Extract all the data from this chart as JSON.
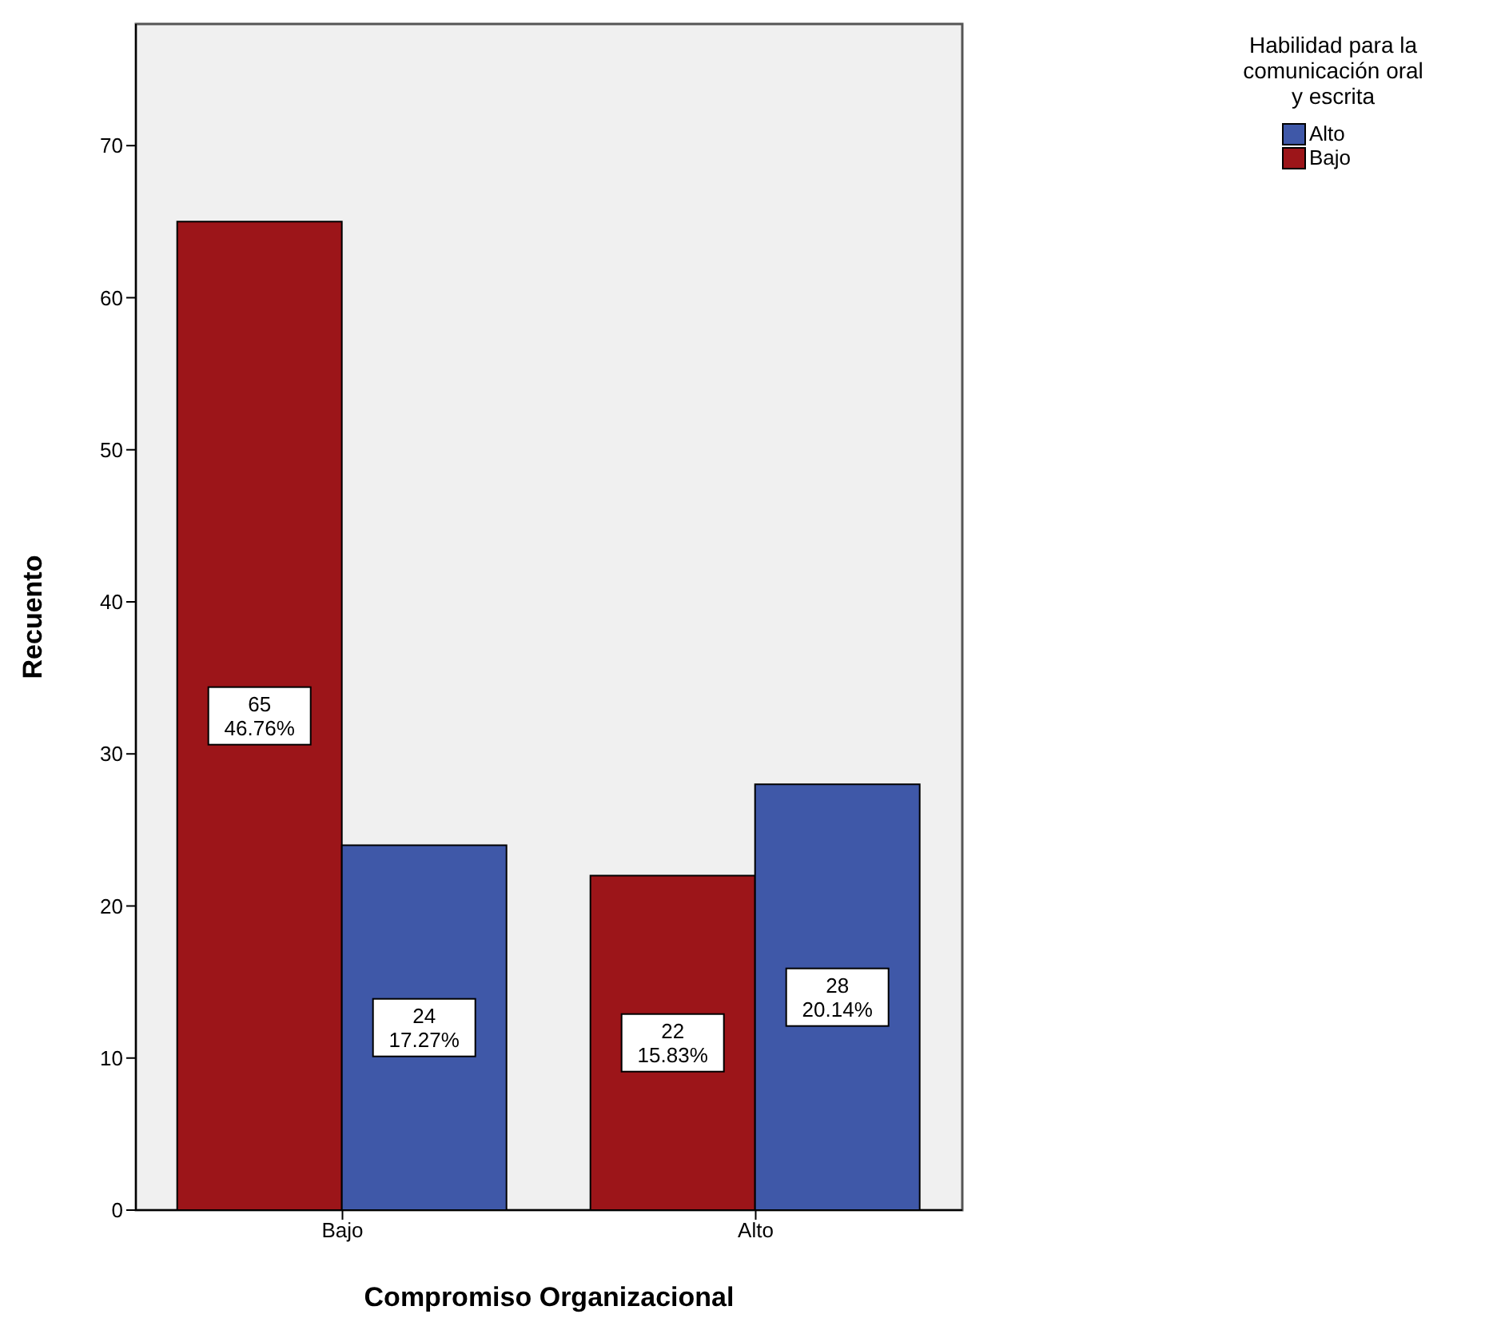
{
  "chart_data": {
    "type": "bar",
    "xlabel": "Compromiso Organizacional",
    "ylabel": "Recuento",
    "legend_title": "Habilidad para la comunicación oral y escrita",
    "categories": [
      "Bajo",
      "Alto"
    ],
    "series": [
      {
        "name": "Bajo",
        "color": "#9c1519",
        "values": [
          65,
          22
        ],
        "value_labels": [
          "65\n46.76%",
          "22\n15.83%"
        ]
      },
      {
        "name": "Alto",
        "color": "#3f58a8",
        "values": [
          24,
          28
        ],
        "value_labels": [
          "24\n17.27%",
          "28\n20.14%"
        ]
      }
    ],
    "ylim": [
      0,
      78
    ],
    "yticks": [
      0,
      10,
      20,
      30,
      40,
      50,
      60,
      70
    ],
    "legend": "top right"
  }
}
